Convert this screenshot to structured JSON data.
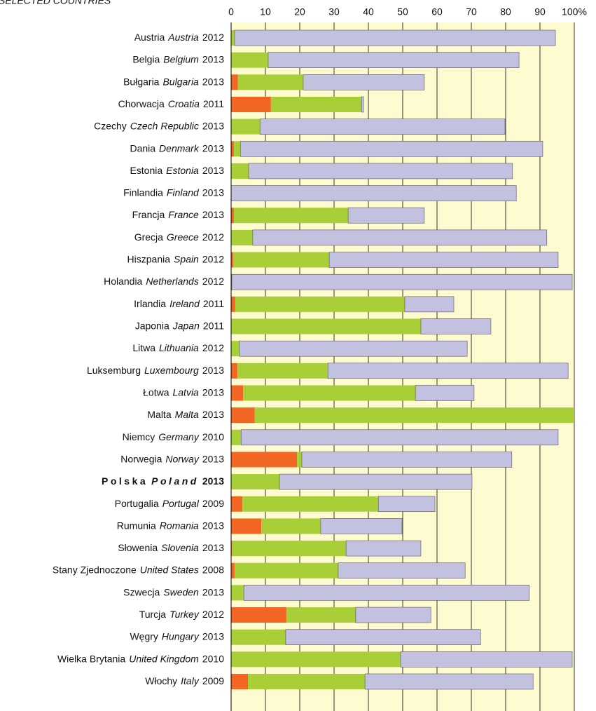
{
  "chart_data": {
    "type": "stacked-barh",
    "title": "SELECTED COUNTRIES",
    "categories": [
      {
        "pl": "Austria",
        "en": "Austria",
        "year": "2012"
      },
      {
        "pl": "Belgia",
        "en": "Belgium",
        "year": "2013"
      },
      {
        "pl": "Bułgaria",
        "en": "Bulgaria",
        "year": "2013"
      },
      {
        "pl": "Chorwacja",
        "en": "Croatia",
        "year": "2011"
      },
      {
        "pl": "Czechy",
        "en": "Czech Republic",
        "year": "2013"
      },
      {
        "pl": "Dania",
        "en": "Denmark",
        "year": "2013"
      },
      {
        "pl": "Estonia",
        "en": "Estonia",
        "year": "2013"
      },
      {
        "pl": "Finlandia",
        "en": "Finland",
        "year": "2013"
      },
      {
        "pl": "Francja",
        "en": "France",
        "year": "2013"
      },
      {
        "pl": "Grecja",
        "en": "Greece",
        "year": "2012"
      },
      {
        "pl": "Hiszpania",
        "en": "Spain",
        "year": "2012"
      },
      {
        "pl": "Holandia",
        "en": "Netherlands",
        "year": "2012"
      },
      {
        "pl": "Irlandia",
        "en": "Ireland",
        "year": "2011"
      },
      {
        "pl": "Japonia",
        "en": "Japan",
        "year": "2011"
      },
      {
        "pl": "Litwa",
        "en": "Lithuania",
        "year": "2012"
      },
      {
        "pl": "Luksemburg",
        "en": "Luxembourg",
        "year": "2013"
      },
      {
        "pl": "Łotwa",
        "en": "Latvia",
        "year": "2013"
      },
      {
        "pl": "Malta",
        "en": "Malta",
        "year": "2013"
      },
      {
        "pl": "Niemcy",
        "en": "Germany",
        "year": "2010"
      },
      {
        "pl": "Norwegia",
        "en": "Norway",
        "year": "2013"
      },
      {
        "pl": "Polska",
        "en": "Poland",
        "year": "2013",
        "bold": true
      },
      {
        "pl": "Portugalia",
        "en": "Portugal",
        "year": "2009"
      },
      {
        "pl": "Rumunia",
        "en": "Romania",
        "year": "2013"
      },
      {
        "pl": "Słowenia",
        "en": "Slovenia",
        "year": "2013"
      },
      {
        "pl": "Stany Zjednoczone",
        "en": "United States",
        "year": "2008"
      },
      {
        "pl": "Szwecja",
        "en": "Sweden",
        "year": "2013"
      },
      {
        "pl": "Turcja",
        "en": "Turkey",
        "year": "2012"
      },
      {
        "pl": "Węgry",
        "en": "Hungary",
        "year": "2013"
      },
      {
        "pl": "Wielka Brytania",
        "en": "United Kingdom",
        "year": "2010"
      },
      {
        "pl": "Włochy",
        "en": "Italy",
        "year": "2009"
      }
    ],
    "series": [
      {
        "color": "#f26522",
        "values": [
          0,
          0,
          2,
          11.6,
          0,
          0.8,
          0,
          0,
          0.8,
          0,
          0.6,
          0,
          1.2,
          0,
          0,
          1.8,
          3.5,
          6.9,
          0,
          19.2,
          0,
          3.3,
          8.8,
          0.2,
          1,
          0,
          16.1,
          0,
          0,
          4.9
        ]
      },
      {
        "color": "#a8cf38",
        "values": [
          1,
          10.8,
          19,
          26.4,
          8.4,
          1.9,
          5.1,
          0,
          33.3,
          6.3,
          28,
          0.2,
          49.4,
          55.3,
          2.4,
          26.4,
          50.2,
          93.1,
          2.9,
          1.4,
          14.1,
          39.6,
          17.3,
          33.3,
          30.2,
          3.7,
          20.2,
          15.9,
          49.4,
          34.1
        ]
      },
      {
        "color": "#c3c1e0",
        "values": [
          93.5,
          73.1,
          35.3,
          0.6,
          71.4,
          88.1,
          76.9,
          83.1,
          22.2,
          85.7,
          66.7,
          99.2,
          14.3,
          20.4,
          66.4,
          70,
          17.1,
          0,
          92.4,
          61.2,
          56.1,
          16.5,
          23.7,
          21.8,
          37,
          83.2,
          21.9,
          56.8,
          50,
          49
        ]
      }
    ],
    "xlim": [
      0,
      100
    ],
    "xticks": [
      0,
      10,
      20,
      30,
      40,
      50,
      60,
      70,
      80,
      90,
      {
        "value": 100,
        "label": "100%"
      }
    ],
    "grid": true,
    "background": "#fffbd0"
  }
}
